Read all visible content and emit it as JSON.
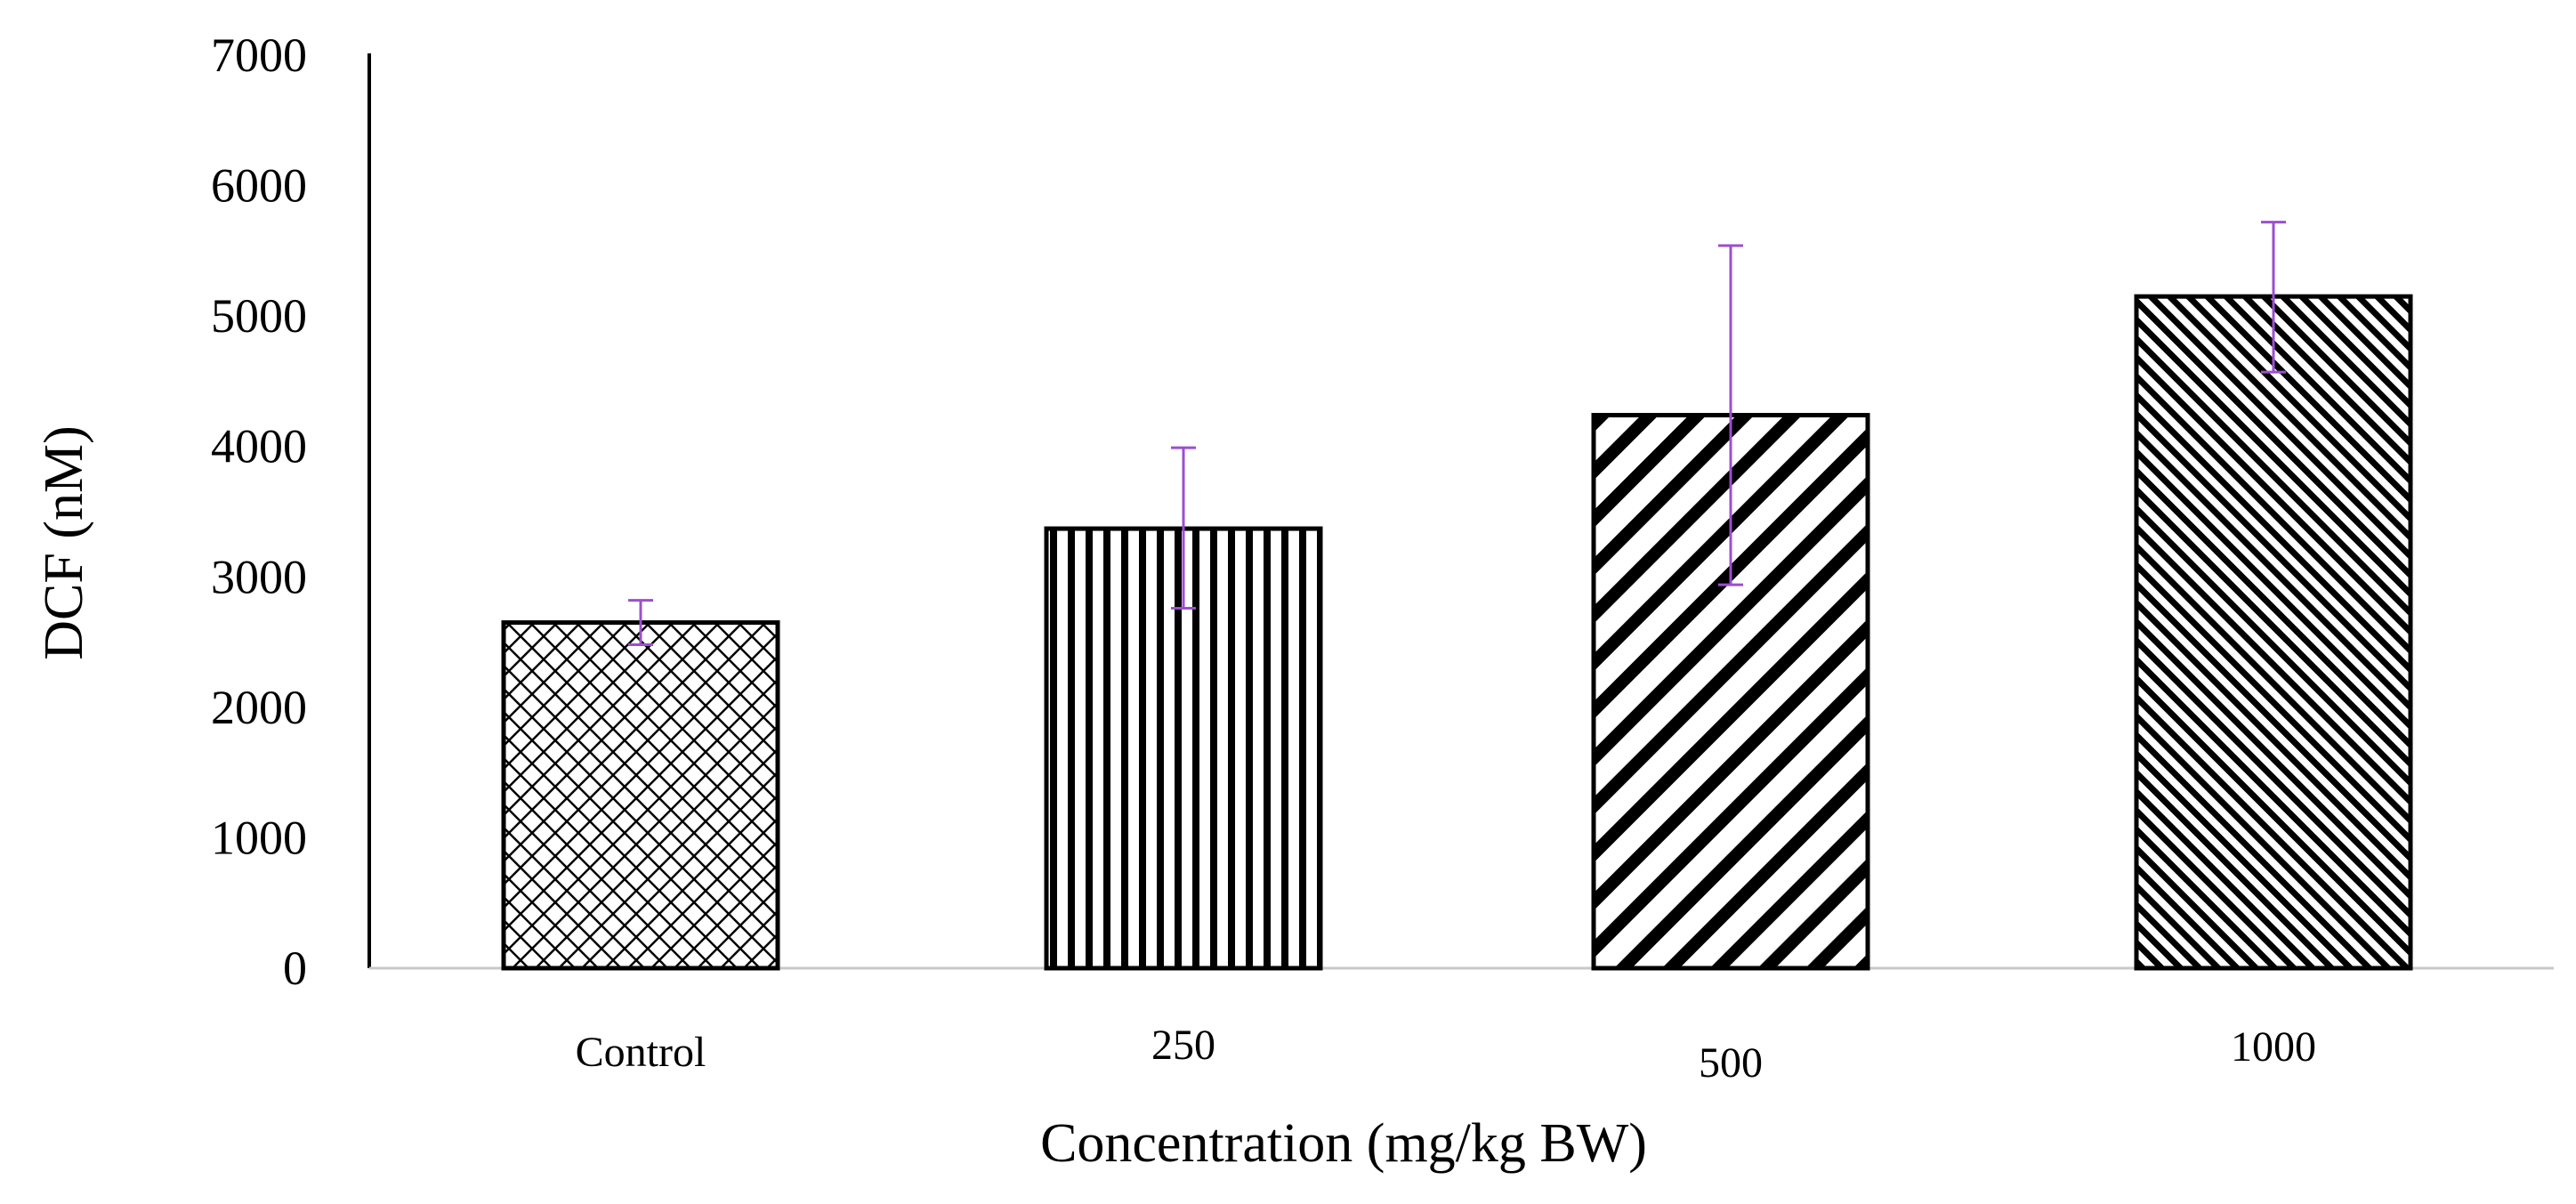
{
  "chart_data": {
    "type": "bar",
    "title": "",
    "xlabel": "Concentration (mg/kg  BW)",
    "ylabel": "DCF (nM)",
    "categories": [
      "Control",
      "250",
      "500",
      "1000"
    ],
    "values": [
      2650,
      3370,
      4240,
      5150
    ],
    "error_low": [
      2480,
      2760,
      2940,
      4570
    ],
    "error_high": [
      2820,
      3990,
      5540,
      5720
    ],
    "ylim": [
      0,
      7000
    ],
    "yticks": [
      "0",
      "1000",
      "2000",
      "3000",
      "4000",
      "5000",
      "6000",
      "7000"
    ],
    "patterns": [
      "crosshatch",
      "vertical-lines",
      "wide-diagonal",
      "dense-diagonal"
    ],
    "colors": {
      "bar_edge": "#000000",
      "error_bar": "#9b4fcf",
      "axis": "#000000",
      "baseline": "#c8c8c8"
    },
    "grid": false
  }
}
